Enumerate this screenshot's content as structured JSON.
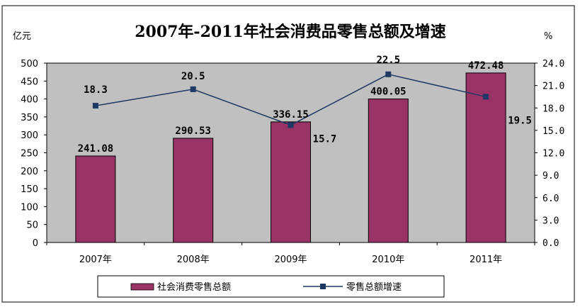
{
  "chart_data": {
    "type": "bar",
    "title": "2007年-2011年社会消费品零售总额及增速",
    "ylabel_left": "亿元",
    "ylabel_right": "%",
    "categories": [
      "2007年",
      "2008年",
      "2009年",
      "2010年",
      "2011年"
    ],
    "series": [
      {
        "name": "社会消费零售总额",
        "kind": "bar",
        "axis": "left",
        "color": "#993366",
        "values": [
          241.08,
          290.53,
          336.15,
          400.05,
          472.48
        ],
        "labels": [
          "241.08",
          "290.53",
          "336.15",
          "400.05",
          "472.48"
        ]
      },
      {
        "name": "零售总额增速",
        "kind": "line",
        "axis": "right",
        "color": "#1f3864",
        "values": [
          18.3,
          20.5,
          15.7,
          22.5,
          19.5
        ],
        "labels": [
          "18.3",
          "20.5",
          "15.7",
          "22.5",
          "19.5"
        ]
      }
    ],
    "ylim_left": [
      0,
      500
    ],
    "ylim_right": [
      0,
      24
    ],
    "yticks_left": [
      "0",
      "50",
      "100",
      "150",
      "200",
      "250",
      "300",
      "350",
      "400",
      "450",
      "500"
    ],
    "yticks_right": [
      "0.0",
      "3.0",
      "6.0",
      "9.0",
      "12.0",
      "15.0",
      "18.0",
      "21.0",
      "24.0"
    ],
    "plot_background": "#c0c0c0",
    "grid": false,
    "legend_position": "bottom"
  }
}
